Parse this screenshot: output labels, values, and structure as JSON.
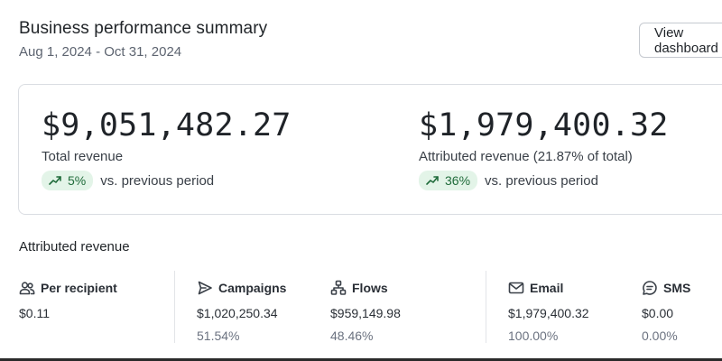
{
  "header": {
    "title": "Business performance summary",
    "date_range": "Aug 1, 2024 - Oct 31, 2024",
    "view_button": "View dashboard"
  },
  "summary": {
    "total": {
      "value": "$9,051,482.27",
      "label": "Total revenue",
      "trend": "5%",
      "trend_text": "vs. previous period"
    },
    "attributed": {
      "value": "$1,979,400.32",
      "label": "Attributed revenue (21.87% of total)",
      "trend": "36%",
      "trend_text": "vs. previous period"
    }
  },
  "attributed_section": {
    "title": "Attributed revenue",
    "stats": [
      {
        "label": "Per recipient",
        "icon": "users-icon",
        "value": "$0.11",
        "pct": ""
      },
      {
        "label": "Campaigns",
        "icon": "send-icon",
        "value": "$1,020,250.34",
        "pct": "51.54%"
      },
      {
        "label": "Flows",
        "icon": "flow-icon",
        "value": "$959,149.98",
        "pct": "48.46%"
      },
      {
        "label": "Email",
        "icon": "mail-icon",
        "value": "$1,979,400.32",
        "pct": "100.00%"
      },
      {
        "label": "SMS",
        "icon": "sms-icon",
        "value": "$0.00",
        "pct": "0.00%"
      }
    ]
  },
  "colors": {
    "trend_badge_bg": "#e3f4e8",
    "trend_badge_fg": "#1f6b3a"
  }
}
